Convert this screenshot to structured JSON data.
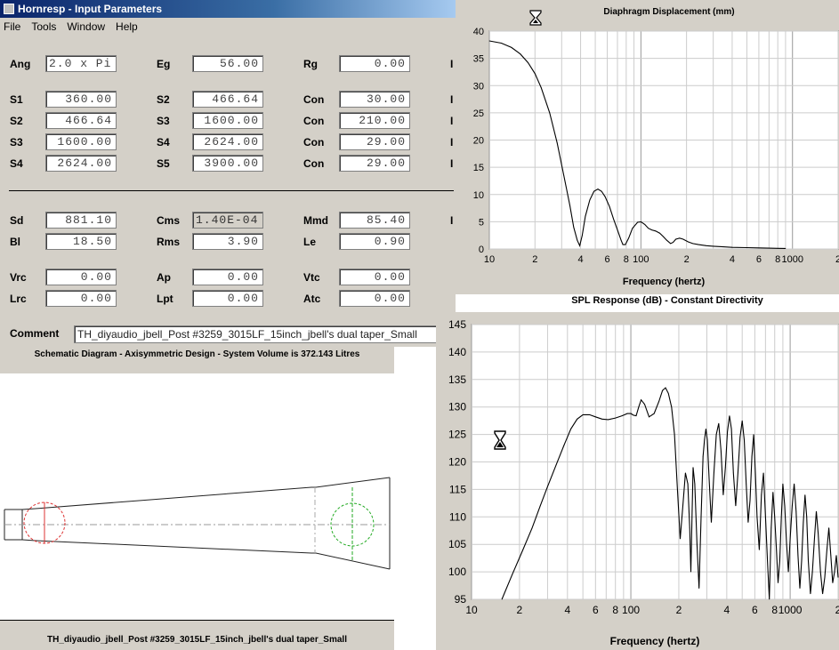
{
  "window": {
    "title": "Hornresp - Input Parameters",
    "menu": [
      "File",
      "Tools",
      "Window",
      "Help"
    ]
  },
  "params": {
    "row1": [
      {
        "label": "Ang",
        "value": "2.0 x Pi",
        "disabled": false
      },
      {
        "label": "Eg",
        "value": "56.00"
      },
      {
        "label": "Rg",
        "value": "0.00"
      }
    ],
    "horn": [
      [
        {
          "label": "S1",
          "value": "360.00"
        },
        {
          "label": "S2",
          "value": "466.64"
        },
        {
          "label": "Con",
          "value": "30.00"
        }
      ],
      [
        {
          "label": "S2",
          "value": "466.64"
        },
        {
          "label": "S3",
          "value": "1600.00"
        },
        {
          "label": "Con",
          "value": "210.00"
        }
      ],
      [
        {
          "label": "S3",
          "value": "1600.00"
        },
        {
          "label": "S4",
          "value": "2624.00"
        },
        {
          "label": "Con",
          "value": "29.00"
        }
      ],
      [
        {
          "label": "S4",
          "value": "2624.00"
        },
        {
          "label": "S5",
          "value": "3900.00"
        },
        {
          "label": "Con",
          "value": "29.00"
        }
      ]
    ],
    "driver": [
      [
        {
          "label": "Sd",
          "value": "881.10"
        },
        {
          "label": "Cms",
          "value": "1.40E-04"
        },
        {
          "label": "Mmd",
          "value": "85.40"
        }
      ],
      [
        {
          "label": "Bl",
          "value": "18.50"
        },
        {
          "label": "Rms",
          "value": "3.90"
        },
        {
          "label": "Le",
          "value": "0.90"
        }
      ]
    ],
    "chambers": [
      [
        {
          "label": "Vrc",
          "value": "0.00"
        },
        {
          "label": "Ap",
          "value": "0.00"
        },
        {
          "label": "Vtc",
          "value": "0.00"
        }
      ],
      [
        {
          "label": "Lrc",
          "value": "0.00"
        },
        {
          "label": "Lpt",
          "value": "0.00"
        },
        {
          "label": "Atc",
          "value": "0.00"
        }
      ]
    ],
    "indicator": "I"
  },
  "comment": {
    "label": "Comment",
    "value": "TH_diyaudio_jbell_Post #3259_3015LF_15inch_jbell's dual taper_Small"
  },
  "schematic": {
    "title": "Schematic Diagram - Axisymmetric Design - System Volume is 372.143 Litres",
    "footer": "TH_diyaudio_jbell_Post #3259_3015LF_15inch_jbell's dual taper_Small"
  },
  "spl_header": "SPL Response (dB) - Constant Directivity",
  "chart_data": [
    {
      "type": "line",
      "title": "Diaphragm Displacement (mm)",
      "xlabel": "Frequency (hertz)",
      "ylabel": "",
      "xscale": "log",
      "xlim": [
        10,
        2000
      ],
      "ylim": [
        0,
        40
      ],
      "yticks": [
        0,
        5,
        10,
        15,
        20,
        25,
        30,
        35,
        40
      ],
      "xticklabels": [
        "10",
        "2",
        "4",
        "6",
        "8",
        "100",
        "2",
        "4",
        "6",
        "8",
        "1000",
        "2"
      ],
      "x": [
        10,
        12,
        14,
        16,
        18,
        20,
        22,
        25,
        28,
        31,
        34,
        36,
        38,
        39.5,
        41,
        43,
        46,
        49,
        52,
        55,
        58,
        62,
        66,
        70,
        74,
        76,
        79,
        83,
        88,
        95,
        100,
        106,
        112,
        118,
        125,
        133,
        140,
        148,
        157,
        163,
        170,
        180,
        190,
        205,
        220,
        240,
        270,
        300,
        350,
        400,
        500,
        600,
        700,
        800,
        900
      ],
      "values": [
        38.2,
        37.8,
        37.0,
        35.8,
        34.2,
        32.2,
        29.6,
        25.0,
        19.5,
        13.5,
        8.0,
        4.0,
        1.6,
        0.6,
        2.5,
        6.0,
        9.0,
        10.6,
        11.0,
        10.6,
        9.6,
        7.8,
        5.5,
        3.5,
        1.6,
        0.8,
        0.8,
        2.0,
        3.8,
        4.9,
        5.0,
        4.5,
        3.8,
        3.5,
        3.3,
        2.9,
        2.3,
        1.6,
        1.0,
        1.2,
        1.8,
        2.0,
        1.8,
        1.3,
        1.0,
        0.8,
        0.6,
        0.5,
        0.4,
        0.3,
        0.25,
        0.2,
        0.15,
        0.12,
        0.1
      ],
      "grid": true
    },
    {
      "type": "line",
      "title": "",
      "xlabel": "Frequency (hertz)",
      "ylabel": "",
      "xscale": "log",
      "xlim": [
        10,
        2000
      ],
      "ylim": [
        95,
        145
      ],
      "yticks": [
        95,
        100,
        105,
        110,
        115,
        120,
        125,
        130,
        135,
        140,
        145
      ],
      "xticklabels": [
        "10",
        "2",
        "4",
        "6",
        "8",
        "100",
        "2",
        "4",
        "6",
        "8",
        "1000",
        "2"
      ],
      "x": [
        15.5,
        18,
        21,
        24,
        27,
        30,
        34,
        38,
        42,
        46,
        50,
        55,
        60,
        66,
        72,
        80,
        88,
        95,
        100,
        104,
        108,
        112,
        116,
        122,
        130,
        140,
        150,
        158,
        165,
        172,
        180,
        188,
        196,
        204,
        212,
        220,
        228,
        234,
        238,
        242,
        246,
        252,
        260,
        268,
        276,
        284,
        290,
        296,
        302,
        310,
        320,
        332,
        344,
        356,
        368,
        380,
        392,
        404,
        416,
        428,
        440,
        455,
        470,
        485,
        500,
        515,
        530,
        545,
        560,
        575,
        590,
        605,
        620,
        640,
        660,
        680,
        700,
        720,
        740,
        760,
        780,
        800,
        820,
        840,
        860,
        880,
        900,
        925,
        950,
        975,
        1000,
        1030,
        1060,
        1090,
        1120,
        1150,
        1180,
        1210,
        1240,
        1270,
        1300,
        1340,
        1380,
        1420,
        1460,
        1500,
        1550,
        1600,
        1650,
        1700,
        1750,
        1800,
        1850,
        1900,
        1950,
        2000
      ],
      "values": [
        95,
        99.5,
        104,
        108,
        112,
        115.5,
        119.5,
        123,
        126,
        127.8,
        128.6,
        128.6,
        128.2,
        127.8,
        127.7,
        128,
        128.4,
        128.8,
        128.8,
        128.5,
        128.4,
        130,
        131.3,
        130.5,
        128.2,
        128.8,
        131,
        133,
        133.5,
        132.5,
        130,
        125,
        115,
        106,
        112,
        118,
        116,
        108,
        100,
        110,
        119,
        116,
        105,
        97,
        110,
        121,
        124,
        126,
        124,
        117,
        109,
        118,
        125,
        127,
        122,
        114,
        119,
        125.5,
        128.4,
        126,
        118,
        112,
        118,
        124.5,
        127.5,
        124,
        116,
        109,
        113,
        121,
        125,
        118,
        110,
        104,
        114,
        118,
        110,
        102,
        95,
        108,
        114.5,
        110,
        104,
        98,
        102,
        110,
        116,
        112,
        105,
        100,
        106,
        112,
        116,
        111,
        103,
        97,
        102,
        109,
        114,
        110,
        102,
        96,
        100,
        106,
        111,
        107,
        100,
        96,
        99,
        104,
        108,
        103,
        98,
        100,
        103,
        99
      ],
      "grid": true
    }
  ]
}
